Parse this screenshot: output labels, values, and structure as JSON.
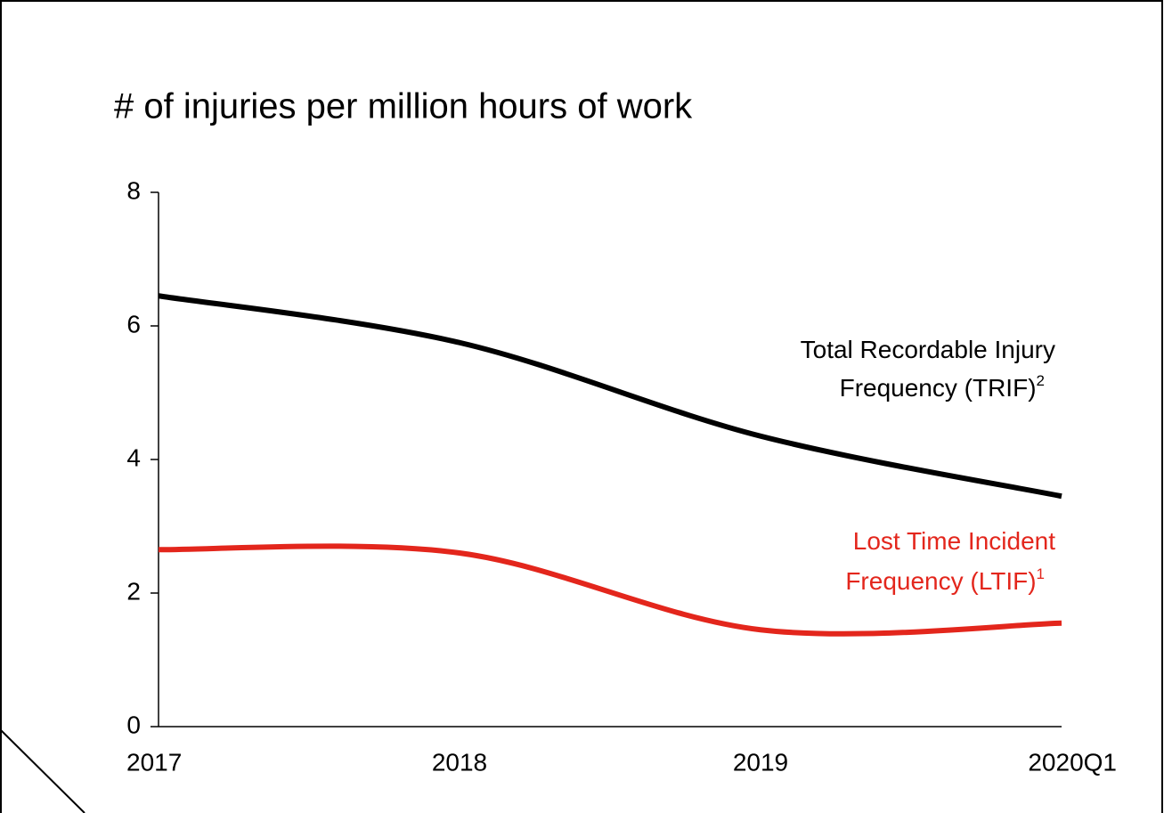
{
  "chart_data": {
    "type": "line",
    "title": "# of injuries per million hours of work",
    "categories": [
      "2017",
      "2018",
      "2019",
      "2020Q1"
    ],
    "series": [
      {
        "name_lines": [
          "Total Recordable Injury",
          "Frequency (TRIF)"
        ],
        "footnote": "2",
        "color": "#000000",
        "values": [
          6.45,
          5.75,
          4.35,
          3.45
        ]
      },
      {
        "name_lines": [
          "Lost Time Incident",
          "Frequency (LTIF)"
        ],
        "footnote": "1",
        "color": "#e3261c",
        "values": [
          2.65,
          2.6,
          1.45,
          1.55
        ]
      }
    ],
    "ylim": [
      0,
      8
    ],
    "yticks": [
      0,
      2,
      4,
      6,
      8
    ],
    "smooth": true
  }
}
